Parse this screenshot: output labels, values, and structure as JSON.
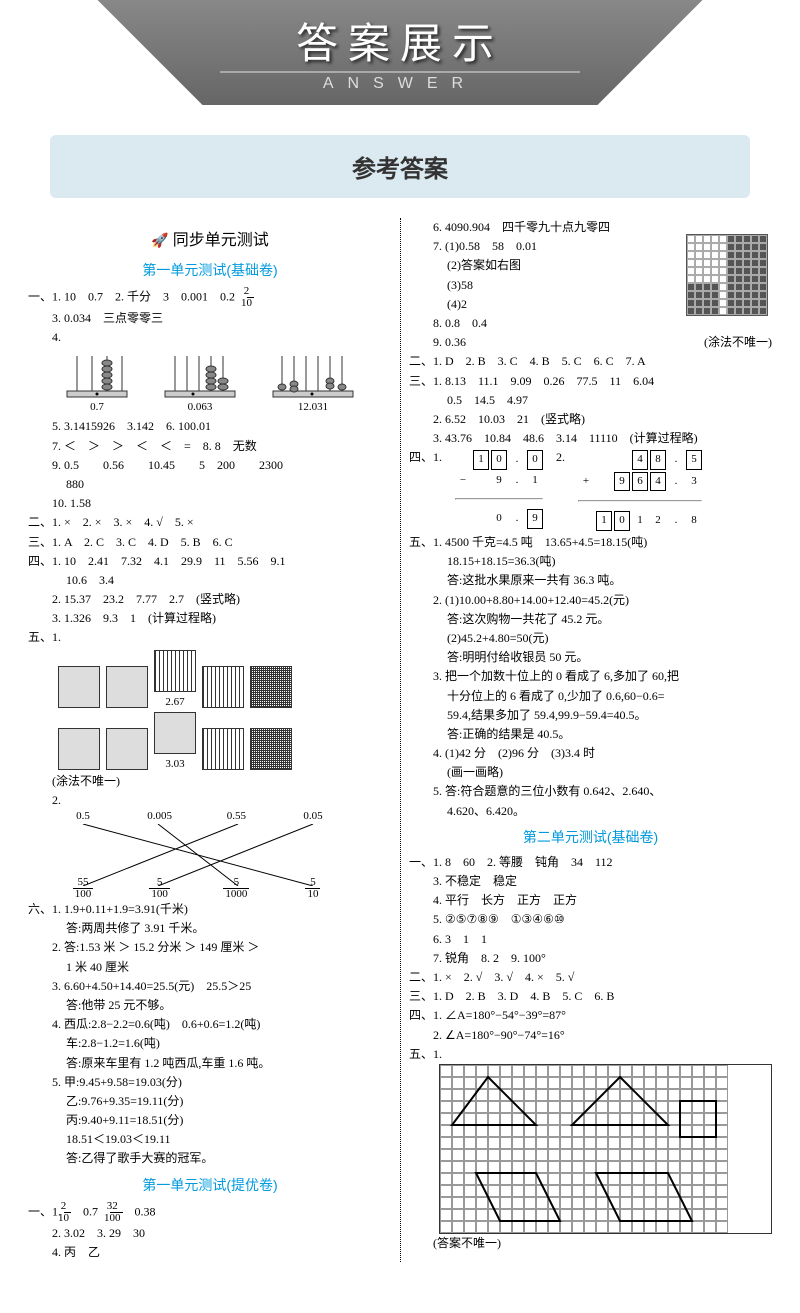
{
  "banner": {
    "cn": "答案展示",
    "en": "ANSWER"
  },
  "subheader": "参考答案",
  "left": {
    "section_title": "同步单元测试",
    "unit1_title": "第一单元测试(基础卷)",
    "l1_1": "一、1. 10　0.7　2. 千分　3　0.001　0.2　",
    "l1_1_frac_n": "2",
    "l1_1_frac_d": "10",
    "l1_3": "3. 0.034　三点零零三",
    "l1_4": "4.",
    "abacus": [
      {
        "label": "0.7"
      },
      {
        "label": "0.063"
      },
      {
        "label": "12.031"
      }
    ],
    "l1_5": "5. 3.1415926　3.142　6. 100.01",
    "l1_7": "7. ＜　＞　＞　＜　＜　=　8. 8　无数",
    "l1_9": "9. 0.5　　0.56　　10.45　　5　200　　2300",
    "l1_9b": "880",
    "l1_10": "10. 1.58",
    "l2": "二、1. ×　2. ×　3. ×　4. √　5. ×",
    "l3": "三、1. A　2. C　3. C　4. D　5. B　6. C",
    "l4_1": "四、1. 10　2.41　7.32　4.1　29.9　11　5.56　9.1",
    "l4_1b": "10.6　3.4",
    "l4_2": "2. 15.37　23.2　7.77　2.7　(竖式略)",
    "l4_3": "3. 1.326　9.3　1　(计算过程略)",
    "l5_1": "五、1.",
    "l5_1_label1": "2.67",
    "l5_1_label2": "3.03",
    "l5_1_note": "(涂法不唯一)",
    "l5_2": "2.",
    "match_top": [
      "0.5",
      "0.005",
      "0.55",
      "0.05"
    ],
    "match_bot_n": [
      "55",
      "5",
      "5",
      "5"
    ],
    "match_bot_d": [
      "100",
      "100",
      "1000",
      "10"
    ],
    "l6_1": "六、1. 1.9+0.11+1.9=3.91(千米)",
    "l6_1a": "答:两周共修了 3.91 千米。",
    "l6_2": "2. 答:1.53 米 ＞ 15.2 分米 ＞ 149 厘米 ＞",
    "l6_2a": "1 米 40 厘米",
    "l6_3": "3. 6.60+4.50+14.40=25.5(元)　25.5＞25",
    "l6_3a": "答:他带 25 元不够。",
    "l6_4": "4. 西瓜:2.8−2.2=0.6(吨)　0.6+0.6=1.2(吨)",
    "l6_4a": "车:2.8−1.2=1.6(吨)",
    "l6_4b": "答:原来车里有 1.2 吨西瓜,车重 1.6 吨。",
    "l6_5": "5. 甲:9.45+9.58=19.03(分)",
    "l6_5a": "乙:9.76+9.35=19.11(分)",
    "l6_5b": "丙:9.40+9.11=18.51(分)",
    "l6_5c": "18.51＜19.03＜19.11",
    "l6_5d": "答:乙得了歌手大赛的冠军。",
    "unit1b_title": "第一单元测试(提优卷)",
    "lb1_1a": "一、1. ",
    "lb1_1_f1n": "2",
    "lb1_1_f1d": "10",
    "lb1_1b": "　0.7　",
    "lb1_1_f2n": "32",
    "lb1_1_f2d": "100",
    "lb1_1c": "　0.38",
    "lb1_2": "2. 3.02　3. 29　30",
    "lb1_4": "4. 丙　乙"
  },
  "right": {
    "r6": "6. 4090.904　四千零九十点九零四",
    "r7": "7. (1)0.58　58　0.01",
    "r7a": "(2)答案如右图",
    "r7b": "(3)58",
    "r7c": "(4)2",
    "r8": "8. 0.8　0.4",
    "r9": "9. 0.36",
    "r9note": "(涂法不唯一)",
    "r2": "二、1. D　2. B　3. C　4. B　5. C　6. C　7. A",
    "r3_1": "三、1. 8.13　11.1　9.09　0.26　77.5　11　6.04",
    "r3_1b": "0.5　14.5　4.97",
    "r3_2": "2. 6.52　10.03　21　(竖式略)",
    "r3_3": "3. 43.76　10.84　48.6　3.14　11110　(计算过程略)",
    "r4": "四、1.",
    "r4_2": "2.",
    "calc1": {
      "r1": [
        "1",
        "0",
        ".",
        "0"
      ],
      "r2": [
        "",
        "9",
        ".",
        "1"
      ],
      "r3": [
        "",
        "0",
        ".",
        "9"
      ],
      "op": "−"
    },
    "calc2": {
      "r1": [
        "",
        "",
        "4",
        "8",
        ".",
        "5"
      ],
      "r2": [
        "",
        "9",
        "6",
        "4",
        ".",
        "3"
      ],
      "r3": [
        "1",
        "0",
        "1",
        "2",
        ".",
        "8"
      ],
      "op": "+"
    },
    "r5_1": "五、1. 4500 千克=4.5 吨　13.65+4.5=18.15(吨)",
    "r5_1a": "18.15+18.15=36.3(吨)",
    "r5_1b": "答:这批水果原来一共有 36.3 吨。",
    "r5_2": "2. (1)10.00+8.80+14.00+12.40=45.2(元)",
    "r5_2a": "答:这次购物一共花了 45.2 元。",
    "r5_2b": "(2)45.2+4.80=50(元)",
    "r5_2c": "答:明明付给收银员 50 元。",
    "r5_3": "3. 把一个加数十位上的 0 看成了 6,多加了 60,把",
    "r5_3a": "十分位上的 6 看成了 0,少加了 0.6,60−0.6=",
    "r5_3b": "59.4,结果多加了 59.4,99.9−59.4=40.5。",
    "r5_3c": "答:正确的结果是 40.5。",
    "r5_4": "4. (1)42 分　(2)96 分　(3)3.4 时",
    "r5_4a": "(画一画略)",
    "r5_5": "5. 答:符合题意的三位小数有 0.642、2.640、",
    "r5_5a": "4.620、6.420。",
    "unit2_title": "第二单元测试(基础卷)",
    "u2_1_1": "一、1. 8　60　2. 等腰　钝角　34　112",
    "u2_1_3": "3. 不稳定　稳定",
    "u2_1_4": "4. 平行　长方　正方　正方",
    "u2_1_5": "5. ②⑤⑦⑧⑨　①③④⑥⑩",
    "u2_1_6": "6. 3　1　1",
    "u2_1_7": "7. 锐角　8. 2　9. 100°",
    "u2_2": "二、1. ×　2. √　3. √　4. ×　5. √",
    "u2_3": "三、1. D　2. B　3. D　4. B　5. C　6. B",
    "u2_4_1": "四、1. ∠A=180°−54°−39°=87°",
    "u2_4_2": "2. ∠A=180°−90°−74°=16°",
    "u2_5": "五、1.",
    "u2_5_note": "(答案不唯一)"
  }
}
